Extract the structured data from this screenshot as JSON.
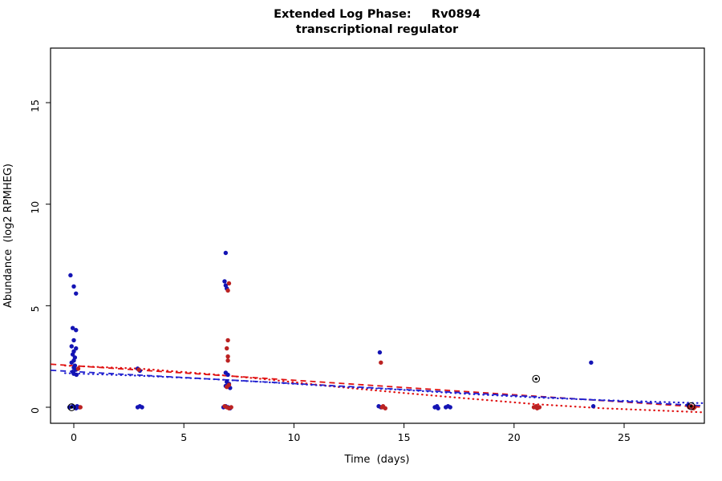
{
  "title": {
    "line1": "Extended Log Phase:     Rv0894",
    "line2": "transcriptional regulator"
  },
  "axes": {
    "x_label": "Time  (days)",
    "y_label": "Abundance  (log2 RPMHEG)"
  },
  "colors": {
    "point_blue": "#1414b4",
    "point_red": "#bb2222",
    "line_blue": "#2222d0",
    "line_red": "#e01212",
    "circled": "#000000"
  },
  "chart_data": {
    "type": "scatter",
    "title": "Extended Log Phase: Rv0894 / transcriptional regulator",
    "xlabel": "Time (days)",
    "ylabel": "Abundance (log2 RPMHEG)",
    "x_range": [
      -1.06,
      28.64
    ],
    "y_range": [
      -0.8,
      17.7
    ],
    "x_ticks": [
      0,
      5,
      10,
      15,
      20,
      25
    ],
    "y_ticks": [
      0,
      5,
      10,
      15
    ],
    "grid": false,
    "legend": "none",
    "series": [
      {
        "name": "blue",
        "points": [
          [
            -0.15,
            6.5
          ],
          [
            0,
            5.95
          ],
          [
            0.1,
            5.6
          ],
          [
            -0.05,
            3.9
          ],
          [
            0.1,
            3.8
          ],
          [
            0,
            3.3
          ],
          [
            -0.1,
            3.0
          ],
          [
            0.1,
            2.9
          ],
          [
            0,
            2.75
          ],
          [
            -0.05,
            2.6
          ],
          [
            0.05,
            2.45
          ],
          [
            0,
            2.3
          ],
          [
            -0.1,
            2.2
          ],
          [
            0.05,
            2.05
          ],
          [
            0,
            1.95
          ],
          [
            0.1,
            1.85
          ],
          [
            -0.05,
            1.75
          ],
          [
            0,
            1.65
          ],
          [
            0.12,
            1.6
          ],
          [
            -0.2,
            0
          ],
          [
            -0.05,
            0.05
          ],
          [
            0.05,
            0
          ],
          [
            0.15,
            0.05
          ],
          [
            0.25,
            0
          ],
          [
            0.1,
            -0.05
          ],
          [
            2.9,
            1.9
          ],
          [
            3.0,
            1.8
          ],
          [
            2.9,
            0
          ],
          [
            3.0,
            0.05
          ],
          [
            3.1,
            0
          ],
          [
            6.9,
            7.6
          ],
          [
            6.85,
            6.2
          ],
          [
            6.9,
            6.0
          ],
          [
            6.95,
            5.85
          ],
          [
            6.9,
            1.7
          ],
          [
            7.0,
            1.6
          ],
          [
            6.95,
            1.25
          ],
          [
            7.05,
            1.15
          ],
          [
            6.9,
            1.05
          ],
          [
            7.1,
            0.95
          ],
          [
            6.8,
            0
          ],
          [
            6.9,
            0.05
          ],
          [
            7.0,
            0
          ],
          [
            7.1,
            -0.05
          ],
          [
            13.9,
            2.7
          ],
          [
            13.85,
            0.05
          ],
          [
            13.95,
            0
          ],
          [
            16.4,
            0
          ],
          [
            16.5,
            0.05
          ],
          [
            16.55,
            -0.05
          ],
          [
            16.9,
            0
          ],
          [
            17.0,
            0.05
          ],
          [
            17.1,
            0
          ],
          [
            23.5,
            2.2
          ],
          [
            23.6,
            0.05
          ],
          [
            27.9,
            0.1
          ],
          [
            28.0,
            0.05
          ],
          [
            28.1,
            0
          ]
        ]
      },
      {
        "name": "red",
        "points": [
          [
            0.2,
            1.9
          ],
          [
            0.3,
            0
          ],
          [
            2.95,
            1.85
          ],
          [
            7.05,
            6.1
          ],
          [
            7.0,
            5.75
          ],
          [
            7.0,
            3.3
          ],
          [
            6.95,
            2.9
          ],
          [
            7.0,
            2.5
          ],
          [
            7.0,
            2.3
          ],
          [
            7.05,
            1.1
          ],
          [
            6.95,
            1.0
          ],
          [
            6.85,
            0.05
          ],
          [
            6.95,
            0
          ],
          [
            7.05,
            -0.05
          ],
          [
            7.15,
            0
          ],
          [
            13.95,
            2.2
          ],
          [
            14.0,
            0
          ],
          [
            14.05,
            0.05
          ],
          [
            14.15,
            -0.05
          ],
          [
            20.9,
            0
          ],
          [
            21.0,
            0.05
          ],
          [
            21.05,
            -0.05
          ],
          [
            21.15,
            0
          ],
          [
            27.95,
            0
          ],
          [
            28.05,
            0.05
          ],
          [
            28.15,
            -0.05
          ],
          [
            28.2,
            0
          ]
        ]
      }
    ],
    "circled_points": [
      [
        -0.1,
        0
      ],
      [
        21.0,
        1.4
      ],
      [
        28.05,
        0.05
      ]
    ],
    "trend_lines": [
      {
        "name": "red-dashed",
        "color": "red",
        "style": "dashed",
        "points": [
          [
            -1.05,
            2.12
          ],
          [
            28.6,
            0.0
          ]
        ]
      },
      {
        "name": "blue-dashed",
        "color": "blue",
        "style": "dashed",
        "points": [
          [
            -1.05,
            1.82
          ],
          [
            28.6,
            0.07
          ]
        ]
      },
      {
        "name": "red-dotted",
        "color": "red",
        "style": "dotted",
        "points": [
          [
            -0.4,
            2.05
          ],
          [
            3,
            1.9
          ],
          [
            6,
            1.65
          ],
          [
            9,
            1.35
          ],
          [
            12,
            1.0
          ],
          [
            15,
            0.7
          ],
          [
            18,
            0.42
          ],
          [
            21,
            0.15
          ],
          [
            24,
            -0.05
          ],
          [
            27,
            -0.18
          ],
          [
            28.6,
            -0.25
          ]
        ]
      },
      {
        "name": "blue-dotted",
        "color": "blue",
        "style": "dotted",
        "points": [
          [
            -0.4,
            1.68
          ],
          [
            3,
            1.55
          ],
          [
            6,
            1.4
          ],
          [
            9,
            1.22
          ],
          [
            12,
            1.02
          ],
          [
            15,
            0.85
          ],
          [
            18,
            0.65
          ],
          [
            21,
            0.48
          ],
          [
            24,
            0.35
          ],
          [
            27,
            0.25
          ],
          [
            28.6,
            0.2
          ]
        ]
      }
    ]
  }
}
